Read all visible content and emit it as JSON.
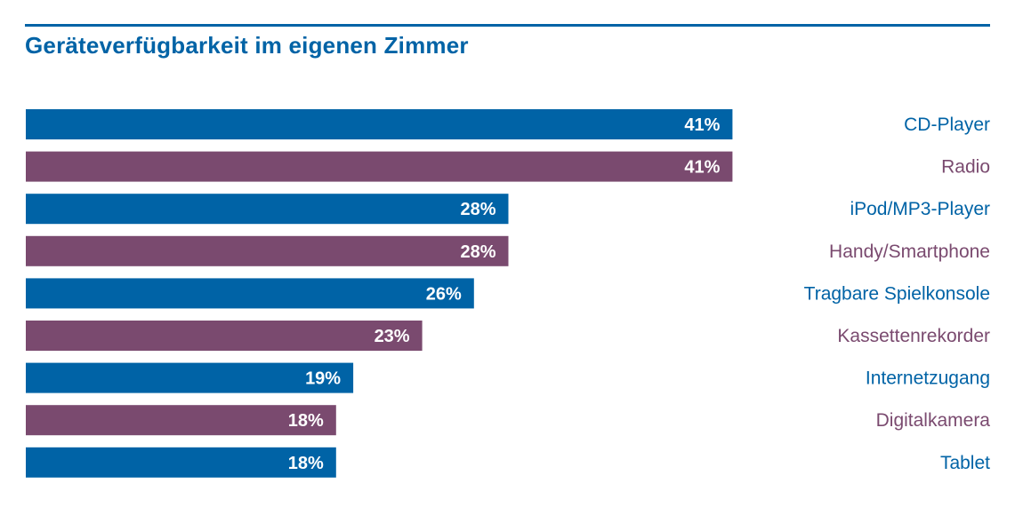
{
  "chart_data": {
    "type": "bar",
    "orientation": "horizontal",
    "title": "Geräteverfügbarkeit im eigenen Zimmer",
    "categories": [
      "CD-Player",
      "Radio",
      "iPod/MP3-Player",
      "Handy/Smartphone",
      "Tragbare Spielkonsole",
      "Kassettenrekorder",
      "Internetzugang",
      "Digitalkamera",
      "Tablet"
    ],
    "values": [
      41,
      41,
      28,
      28,
      26,
      23,
      19,
      18,
      18
    ],
    "value_labels": [
      "41%",
      "41%",
      "28%",
      "28%",
      "26%",
      "23%",
      "19%",
      "18%",
      "18%"
    ],
    "unit": "%",
    "xlim": [
      0,
      56
    ],
    "xlabel": "",
    "ylabel": "",
    "grid": false,
    "legend": "none",
    "colors": {
      "primary": "#0063a6",
      "secondary": "#7a4a6f",
      "rule": "#0063a6"
    }
  }
}
